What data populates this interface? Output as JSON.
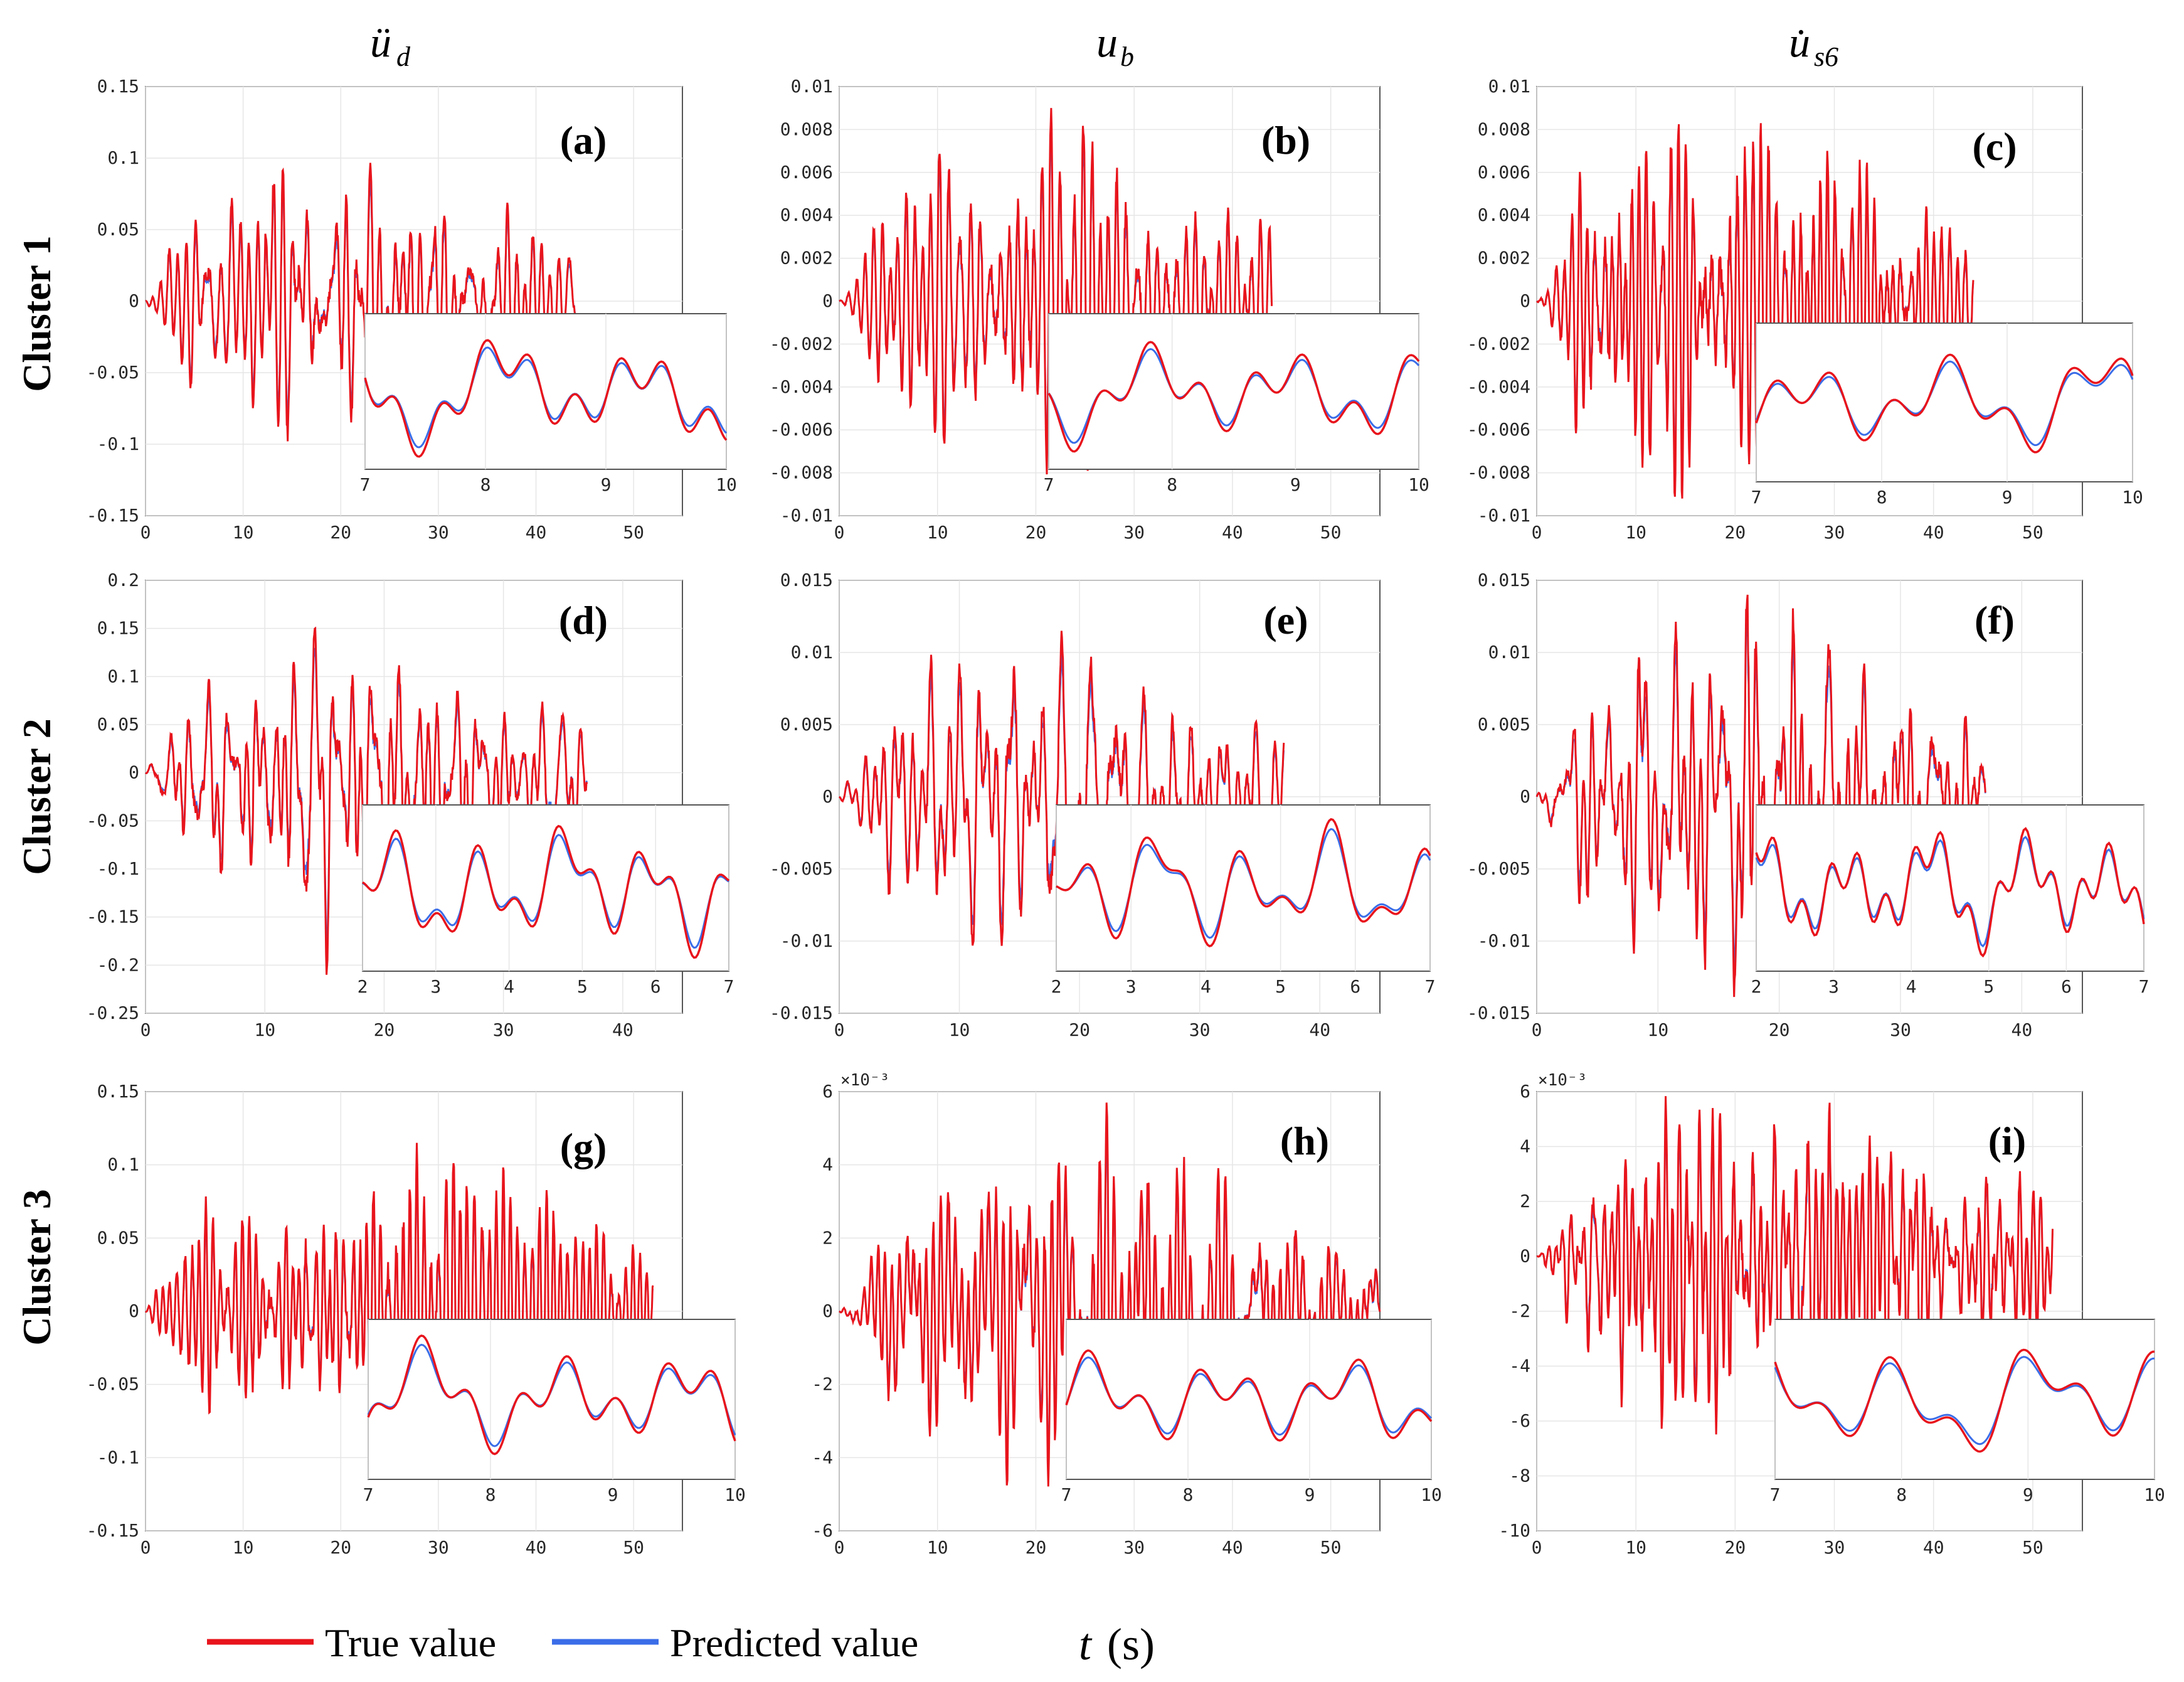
{
  "columns": [
    {
      "base": "ü",
      "sub": "d"
    },
    {
      "base": "u",
      "sub": "b"
    },
    {
      "base": "u̇",
      "sub": "s6"
    }
  ],
  "rows": [
    "Cluster 1",
    "Cluster 2",
    "Cluster 3"
  ],
  "legend": {
    "true_label": "True value",
    "pred_label": "Predicted value"
  },
  "xlabel": {
    "var": "t",
    "unit": "(s)"
  },
  "colors": {
    "true": "#e8141c",
    "pred": "#3a6de8",
    "frame": "#555555",
    "grid": "#e6e6e6"
  },
  "chart_data": [
    {
      "type": "line",
      "panel": "(a)",
      "xlim": [
        0,
        55
      ],
      "ylim": [
        -0.15,
        0.15
      ],
      "xticks": [
        "0",
        "10",
        "20",
        "30",
        "40",
        "50"
      ],
      "yticks": [
        "-0.15",
        "-0.1",
        "-0.05",
        "0",
        "0.05",
        "0.1",
        "0.15"
      ],
      "exponent": "",
      "duration": 44,
      "peak_pos": 0.112,
      "peak_neg": -0.098,
      "inset": {
        "xlim": [
          7,
          10
        ],
        "xticks": [
          "7",
          "8",
          "9",
          "10"
        ]
      },
      "series": [
        {
          "name": "True value"
        },
        {
          "name": "Predicted value"
        }
      ]
    },
    {
      "type": "line",
      "panel": "(b)",
      "xlim": [
        0,
        55
      ],
      "ylim": [
        -0.01,
        0.01
      ],
      "xticks": [
        "0",
        "10",
        "20",
        "30",
        "40",
        "50"
      ],
      "yticks": [
        "-0.01",
        "-0.008",
        "-0.006",
        "-0.004",
        "-0.002",
        "0",
        "0.002",
        "0.004",
        "0.006",
        "0.008",
        "0.01"
      ],
      "exponent": "",
      "duration": 44,
      "peak_pos": 0.009,
      "peak_neg": -0.0085,
      "inset": {
        "xlim": [
          7,
          10
        ],
        "xticks": [
          "7",
          "8",
          "9",
          "10"
        ]
      },
      "series": [
        {
          "name": "True value"
        },
        {
          "name": "Predicted value"
        }
      ]
    },
    {
      "type": "line",
      "panel": "(c)",
      "xlim": [
        0,
        55
      ],
      "ylim": [
        -0.01,
        0.01
      ],
      "xticks": [
        "0",
        "10",
        "20",
        "30",
        "40",
        "50"
      ],
      "yticks": [
        "-0.01",
        "-0.008",
        "-0.006",
        "-0.004",
        "-0.002",
        "0",
        "0.002",
        "0.004",
        "0.006",
        "0.008",
        "0.01"
      ],
      "exponent": "",
      "duration": 44,
      "peak_pos": 0.0085,
      "peak_neg": -0.0092,
      "inset": {
        "xlim": [
          7,
          10
        ],
        "xticks": [
          "7",
          "8",
          "9",
          "10"
        ]
      },
      "series": [
        {
          "name": "True value"
        },
        {
          "name": "Predicted value"
        }
      ]
    },
    {
      "type": "line",
      "panel": "(d)",
      "xlim": [
        0,
        45
      ],
      "ylim": [
        -0.25,
        0.2
      ],
      "xticks": [
        "0",
        "10",
        "20",
        "30",
        "40"
      ],
      "yticks": [
        "-0.25",
        "-0.2",
        "-0.15",
        "-0.1",
        "-0.05",
        "0",
        "0.05",
        "0.1",
        "0.15",
        "0.2"
      ],
      "exponent": "",
      "duration": 37,
      "peak_pos": 0.155,
      "peak_neg": -0.21,
      "inset": {
        "xlim": [
          2,
          7
        ],
        "xticks": [
          "2",
          "3",
          "4",
          "5",
          "6",
          "7"
        ]
      },
      "series": [
        {
          "name": "True value"
        },
        {
          "name": "Predicted value"
        }
      ]
    },
    {
      "type": "line",
      "panel": "(e)",
      "xlim": [
        0,
        45
      ],
      "ylim": [
        -0.015,
        0.015
      ],
      "xticks": [
        "0",
        "10",
        "20",
        "30",
        "40"
      ],
      "yticks": [
        "-0.015",
        "-0.01",
        "-0.005",
        "0",
        "0.005",
        "0.01",
        "0.015"
      ],
      "exponent": "",
      "duration": 37,
      "peak_pos": 0.0115,
      "peak_neg": -0.011,
      "inset": {
        "xlim": [
          2,
          7
        ],
        "xticks": [
          "2",
          "3",
          "4",
          "5",
          "6",
          "7"
        ]
      },
      "series": [
        {
          "name": "True value"
        },
        {
          "name": "Predicted value"
        }
      ]
    },
    {
      "type": "line",
      "panel": "(f)",
      "xlim": [
        0,
        45
      ],
      "ylim": [
        -0.015,
        0.015
      ],
      "xticks": [
        "0",
        "10",
        "20",
        "30",
        "40"
      ],
      "yticks": [
        "-0.015",
        "-0.01",
        "-0.005",
        "0",
        "0.005",
        "0.01",
        "0.015"
      ],
      "exponent": "",
      "duration": 37,
      "peak_pos": 0.014,
      "peak_neg": -0.015,
      "inset": {
        "xlim": [
          2,
          7
        ],
        "xticks": [
          "2",
          "3",
          "4",
          "5",
          "6",
          "7"
        ]
      },
      "series": [
        {
          "name": "True value"
        },
        {
          "name": "Predicted value"
        }
      ]
    },
    {
      "type": "line",
      "panel": "(g)",
      "xlim": [
        0,
        55
      ],
      "ylim": [
        -0.15,
        0.15
      ],
      "xticks": [
        "0",
        "10",
        "20",
        "30",
        "40",
        "50"
      ],
      "yticks": [
        "-0.15",
        "-0.1",
        "-0.05",
        "0",
        "0.05",
        "0.1",
        "0.15"
      ],
      "exponent": "",
      "duration": 52,
      "peak_pos": 0.115,
      "peak_neg": -0.102,
      "inset": {
        "xlim": [
          7,
          10
        ],
        "xticks": [
          "7",
          "8",
          "9",
          "10"
        ]
      },
      "series": [
        {
          "name": "True value"
        },
        {
          "name": "Predicted value"
        }
      ]
    },
    {
      "type": "line",
      "panel": "(h)",
      "xlim": [
        0,
        55
      ],
      "ylim": [
        -6,
        6
      ],
      "xticks": [
        "0",
        "10",
        "20",
        "30",
        "40",
        "50"
      ],
      "yticks": [
        "-6",
        "-4",
        "-2",
        "0",
        "2",
        "4",
        "6"
      ],
      "exponent": "×10⁻³",
      "duration": 55,
      "peak_pos": 5.7,
      "peak_neg": -4.8,
      "inset": {
        "xlim": [
          7,
          10
        ],
        "xticks": [
          "7",
          "8",
          "9",
          "10"
        ]
      },
      "series": [
        {
          "name": "True value"
        },
        {
          "name": "Predicted value"
        }
      ]
    },
    {
      "type": "line",
      "panel": "(i)",
      "xlim": [
        0,
        55
      ],
      "ylim": [
        -10,
        6
      ],
      "xticks": [
        "0",
        "10",
        "20",
        "30",
        "40",
        "50"
      ],
      "yticks": [
        "-10",
        "-8",
        "-6",
        "-4",
        "-2",
        "0",
        "2",
        "4",
        "6"
      ],
      "exponent": "×10⁻³",
      "duration": 52,
      "peak_pos": 6,
      "peak_neg": -8,
      "inset": {
        "xlim": [
          7,
          10
        ],
        "xticks": [
          "7",
          "8",
          "9",
          "10"
        ]
      },
      "series": [
        {
          "name": "True value"
        },
        {
          "name": "Predicted value"
        }
      ]
    }
  ]
}
